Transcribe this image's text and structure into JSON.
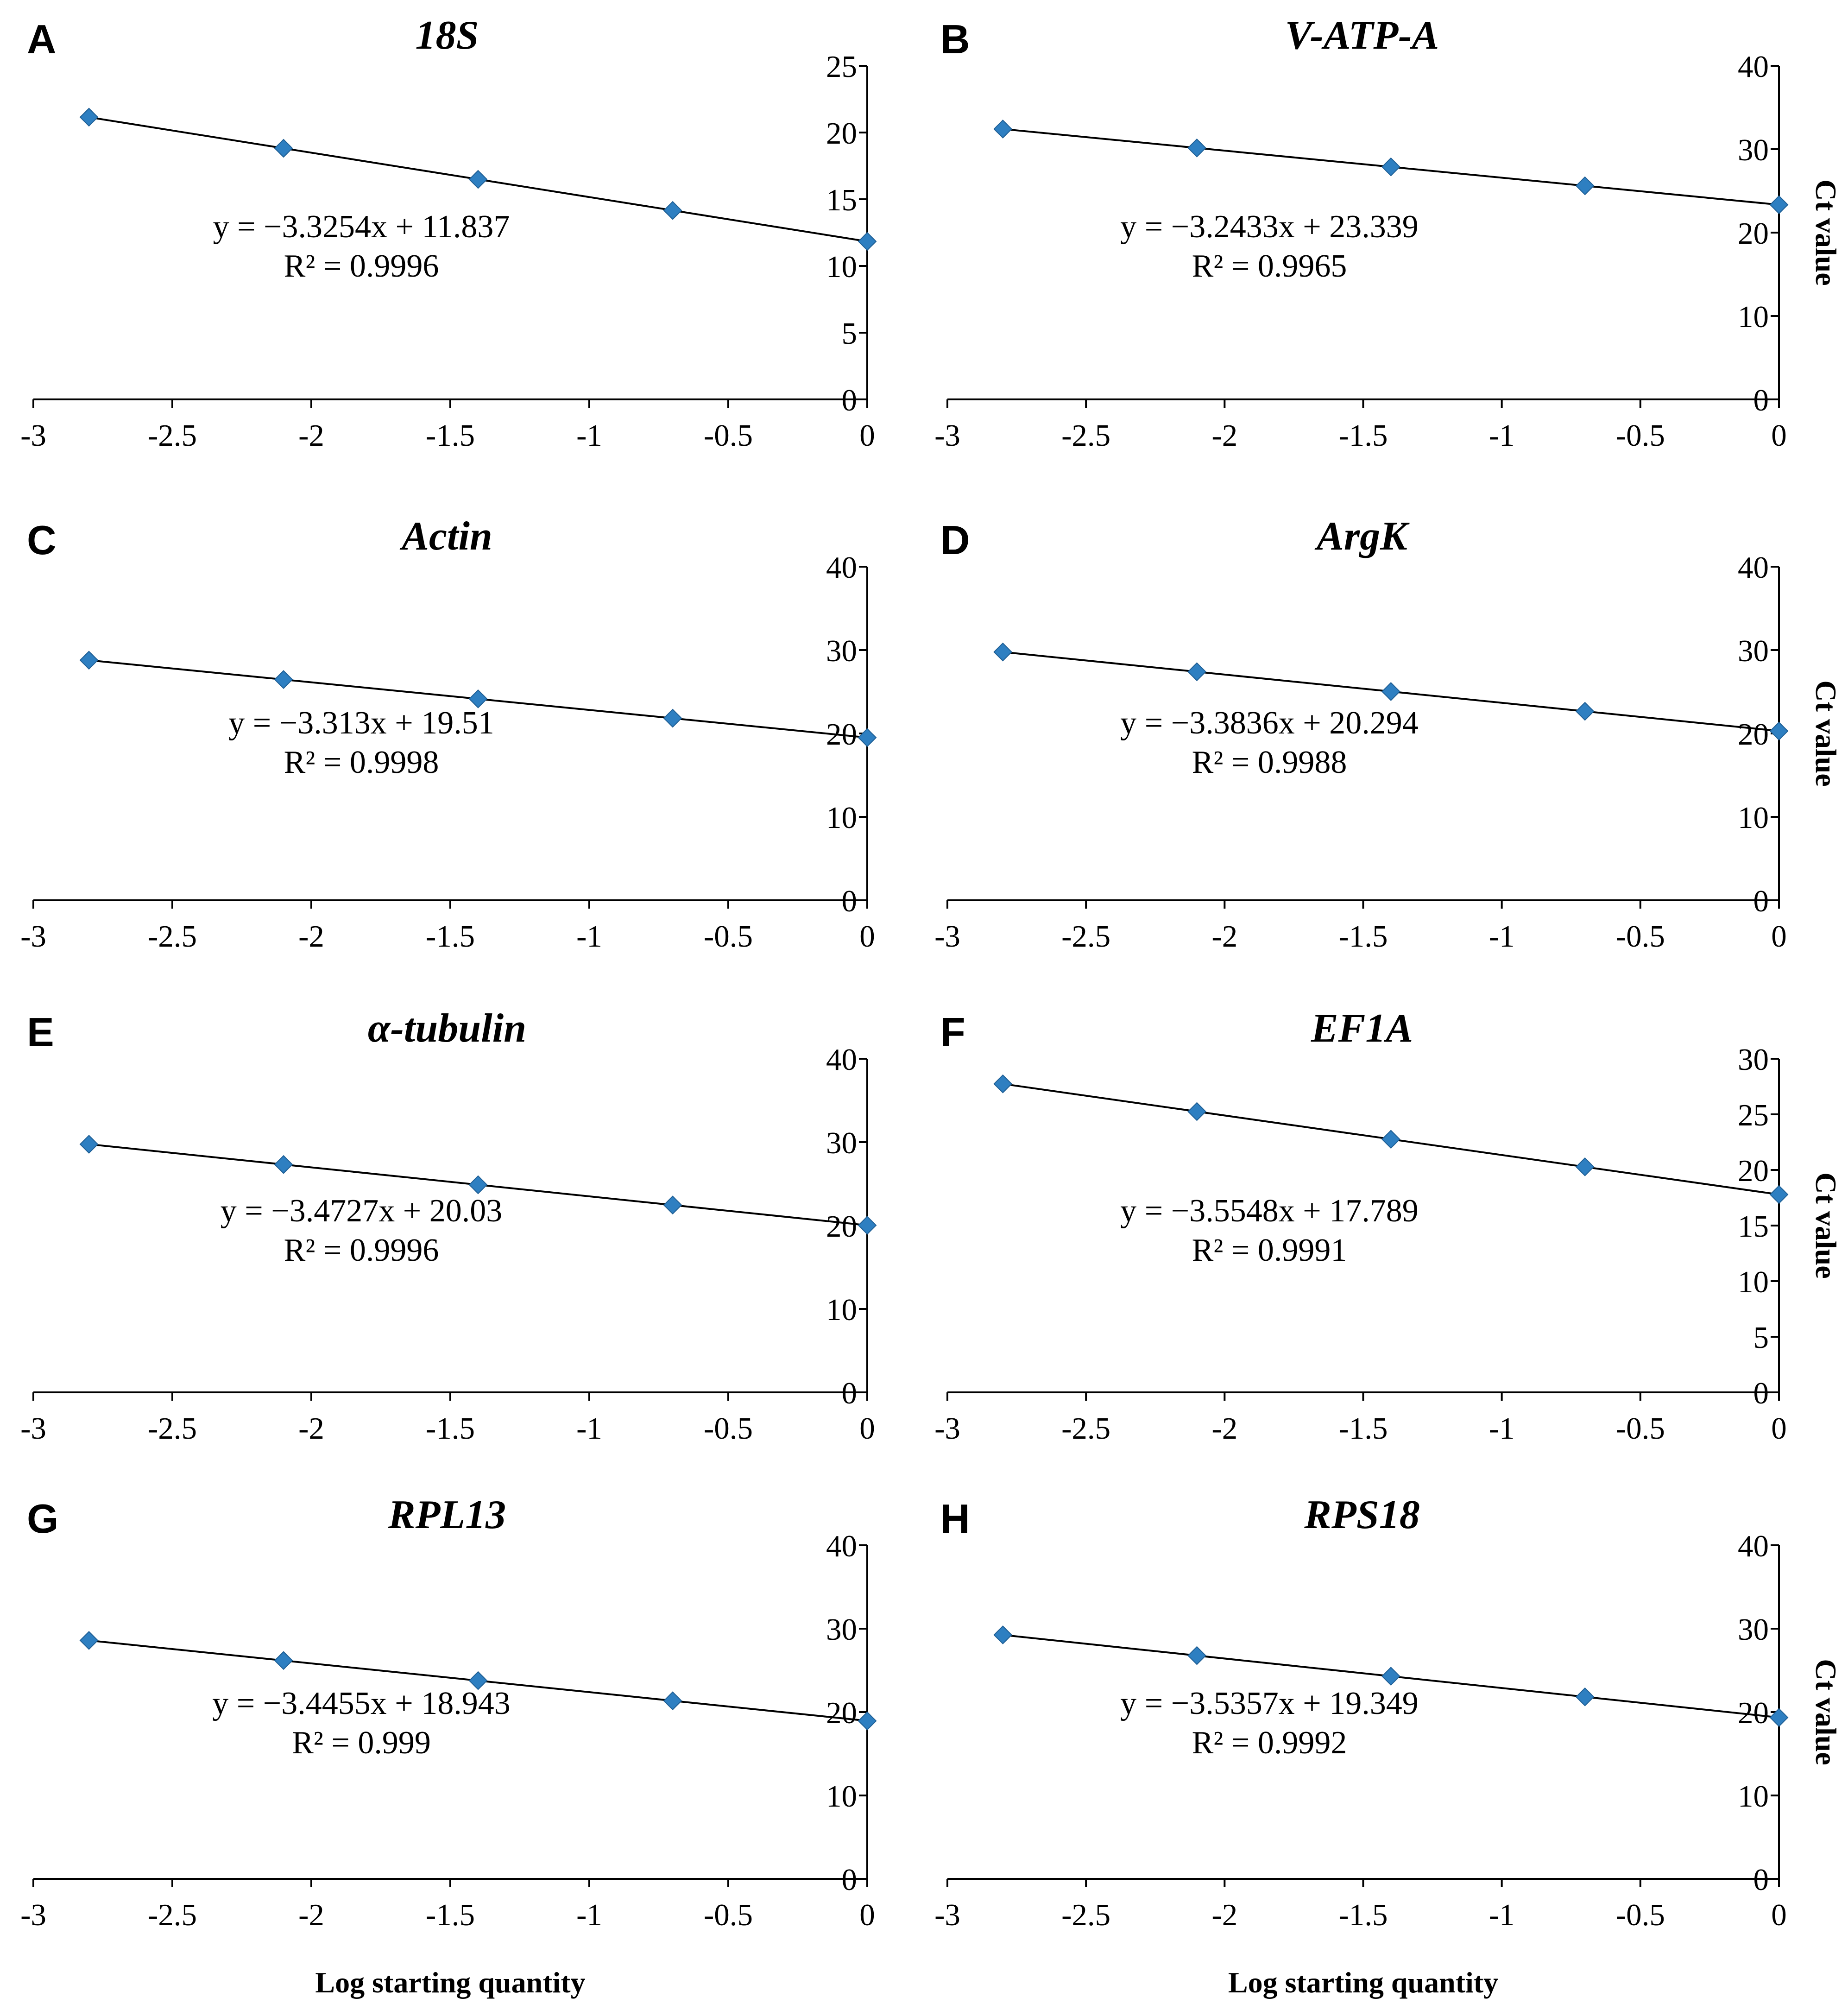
{
  "figure": {
    "x_axis_title": "Log starting quantity",
    "y_axis_title": "Ct value"
  },
  "colors": {
    "marker": "#2e7fc1",
    "line": "#000000"
  },
  "chart_data": [
    {
      "type": "scatter",
      "letter": "A",
      "title": "18S",
      "x": [
        -2.8,
        -2.1,
        -1.4,
        -0.7,
        0
      ],
      "y": [
        21.15,
        18.82,
        16.49,
        14.16,
        11.84
      ],
      "fit": {
        "slope": -3.3254,
        "intercept": 11.837
      },
      "equation": "y = −3.3254x + 11.837",
      "r2": "R² = 0.9996",
      "xlim": [
        -3,
        0
      ],
      "ylim": [
        0,
        25
      ],
      "xticks": [
        "-3",
        "-2.5",
        "-2",
        "-1.5",
        "-1",
        "-0.5",
        "0"
      ],
      "yticks": [
        "0",
        "5",
        "10",
        "15",
        "20",
        "25"
      ]
    },
    {
      "type": "scatter",
      "letter": "B",
      "title": "V-ATP-A",
      "x": [
        -2.8,
        -2.1,
        -1.4,
        -0.7,
        0
      ],
      "y": [
        32.42,
        30.15,
        27.88,
        25.61,
        23.34
      ],
      "fit": {
        "slope": -3.2433,
        "intercept": 23.339
      },
      "equation": "y = −3.2433x + 23.339",
      "r2": "R² = 0.9965",
      "xlim": [
        -3,
        0
      ],
      "ylim": [
        0,
        40
      ],
      "xticks": [
        "-3",
        "-2.5",
        "-2",
        "-1.5",
        "-1",
        "-0.5",
        "0"
      ],
      "yticks": [
        "0",
        "10",
        "20",
        "30",
        "40"
      ]
    },
    {
      "type": "scatter",
      "letter": "C",
      "title": "Actin",
      "x": [
        -2.8,
        -2.1,
        -1.4,
        -0.7,
        0
      ],
      "y": [
        28.79,
        26.47,
        24.15,
        21.83,
        19.51
      ],
      "fit": {
        "slope": -3.313,
        "intercept": 19.51
      },
      "equation": "y = −3.313x + 19.51",
      "r2": "R² = 0.9998",
      "xlim": [
        -3,
        0
      ],
      "ylim": [
        0,
        40
      ],
      "xticks": [
        "-3",
        "-2.5",
        "-2",
        "-1.5",
        "-1",
        "-0.5",
        "0"
      ],
      "yticks": [
        "0",
        "10",
        "20",
        "30",
        "40"
      ]
    },
    {
      "type": "scatter",
      "letter": "D",
      "title": "ArgK",
      "x": [
        -2.8,
        -2.1,
        -1.4,
        -0.7,
        0
      ],
      "y": [
        29.77,
        27.4,
        25.03,
        22.66,
        20.29
      ],
      "fit": {
        "slope": -3.3836,
        "intercept": 20.294
      },
      "equation": "y = −3.3836x + 20.294",
      "r2": "R² = 0.9988",
      "xlim": [
        -3,
        0
      ],
      "ylim": [
        0,
        40
      ],
      "xticks": [
        "-3",
        "-2.5",
        "-2",
        "-1.5",
        "-1",
        "-0.5",
        "0"
      ],
      "yticks": [
        "0",
        "10",
        "20",
        "30",
        "40"
      ]
    },
    {
      "type": "scatter",
      "letter": "E",
      "title": "α-tubulin",
      "x": [
        -2.8,
        -2.1,
        -1.4,
        -0.7,
        0
      ],
      "y": [
        29.75,
        27.32,
        24.89,
        22.46,
        20.03
      ],
      "fit": {
        "slope": -3.4727,
        "intercept": 20.03
      },
      "equation": "y = −3.4727x + 20.03",
      "r2": "R² = 0.9996",
      "xlim": [
        -3,
        0
      ],
      "ylim": [
        0,
        40
      ],
      "xticks": [
        "-3",
        "-2.5",
        "-2",
        "-1.5",
        "-1",
        "-0.5",
        "0"
      ],
      "yticks": [
        "0",
        "10",
        "20",
        "30",
        "40"
      ]
    },
    {
      "type": "scatter",
      "letter": "F",
      "title": "EF1A",
      "x": [
        -2.8,
        -2.1,
        -1.4,
        -0.7,
        0
      ],
      "y": [
        27.74,
        25.25,
        22.76,
        20.28,
        17.79
      ],
      "fit": {
        "slope": -3.5548,
        "intercept": 17.789
      },
      "equation": "y = −3.5548x + 17.789",
      "r2": "R² = 0.9991",
      "xlim": [
        -3,
        0
      ],
      "ylim": [
        0,
        30
      ],
      "xticks": [
        "-3",
        "-2.5",
        "-2",
        "-1.5",
        "-1",
        "-0.5",
        "0"
      ],
      "yticks": [
        "0",
        "5",
        "10",
        "15",
        "20",
        "25",
        "30"
      ]
    },
    {
      "type": "scatter",
      "letter": "G",
      "title": "RPL13",
      "x": [
        -2.8,
        -2.1,
        -1.4,
        -0.7,
        0
      ],
      "y": [
        28.59,
        26.18,
        23.77,
        21.35,
        18.94
      ],
      "fit": {
        "slope": -3.4455,
        "intercept": 18.943
      },
      "equation": "y = −3.4455x + 18.943",
      "r2": "R² = 0.999",
      "xlim": [
        -3,
        0
      ],
      "ylim": [
        0,
        40
      ],
      "xticks": [
        "-3",
        "-2.5",
        "-2",
        "-1.5",
        "-1",
        "-0.5",
        "0"
      ],
      "yticks": [
        "0",
        "10",
        "20",
        "30",
        "40"
      ]
    },
    {
      "type": "scatter",
      "letter": "H",
      "title": "RPS18",
      "x": [
        -2.8,
        -2.1,
        -1.4,
        -0.7,
        0
      ],
      "y": [
        29.25,
        26.77,
        24.3,
        21.82,
        19.35
      ],
      "fit": {
        "slope": -3.5357,
        "intercept": 19.349
      },
      "equation": "y = −3.5357x + 19.349",
      "r2": "R² = 0.9992",
      "xlim": [
        -3,
        0
      ],
      "ylim": [
        0,
        40
      ],
      "xticks": [
        "-3",
        "-2.5",
        "-2",
        "-1.5",
        "-1",
        "-0.5",
        "0"
      ],
      "yticks": [
        "0",
        "10",
        "20",
        "30",
        "40"
      ]
    }
  ]
}
